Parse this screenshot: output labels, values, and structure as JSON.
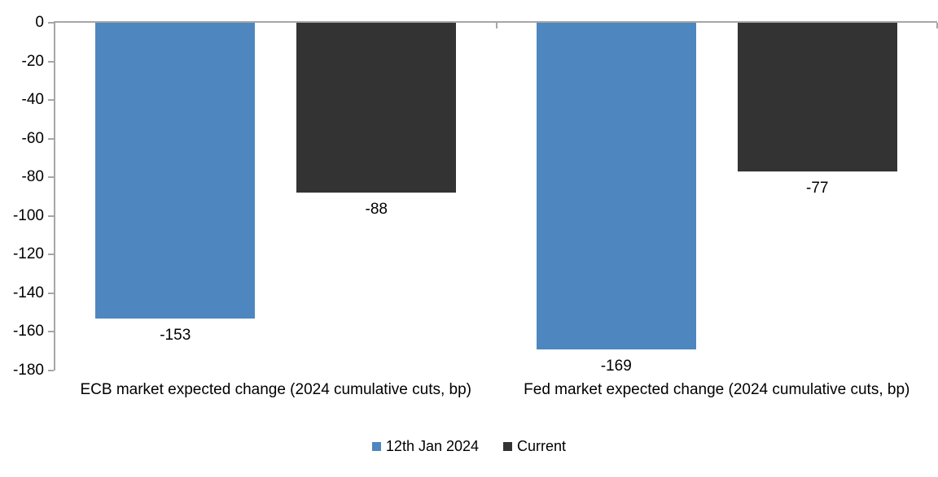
{
  "chart_data": {
    "type": "bar",
    "categories": [
      "ECB market expected change (2024 cumulative cuts, bp)",
      "Fed market expected change (2024 cumulative cuts, bp)"
    ],
    "series": [
      {
        "name": "12th Jan 2024",
        "color": "#4E87BF",
        "values": [
          -153,
          -169
        ]
      },
      {
        "name": "Current",
        "color": "#333333",
        "values": [
          -88,
          -77
        ]
      }
    ],
    "ylim": [
      -180,
      0
    ],
    "yticks": [
      0,
      -20,
      -40,
      -60,
      -80,
      -100,
      -120,
      -140,
      -160,
      -180
    ],
    "title": "",
    "xlabel": "",
    "ylabel": "",
    "grid": false,
    "data_labels": true,
    "legend_position": "bottom",
    "axis_color": "#A6A6A6",
    "text_color": "#000000",
    "background_color": "#FFFFFF"
  }
}
